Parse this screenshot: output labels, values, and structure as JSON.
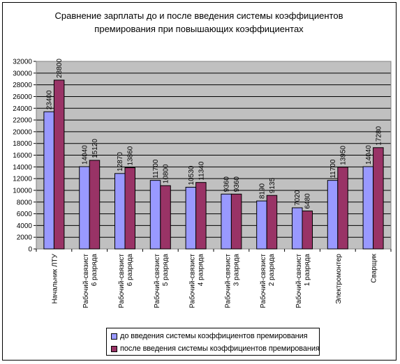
{
  "chart_data": {
    "type": "bar",
    "title": "Сравнение зарплаты до и после введения системы коэффициентов\nпремирования при повышающих коэффициентах",
    "categories": [
      "Начальник ЛТУ",
      "Рабочий-связист\n6 разряда",
      "Рабочий-связист\n6 разряда",
      "Рабочий-связист\n5 разряда",
      "Рабочий-связист\n4 разряда",
      "Рабочий-связист\n3 разряда",
      "Рабочий-связист\n2 разряда",
      "Рабочий-связист\n1 разряда",
      "Электромонтер",
      "Сварщик"
    ],
    "series": [
      {
        "name": "до введения системы коэффициентов премирования",
        "color": "#9999ff",
        "values": [
          23400,
          14040,
          12870,
          11700,
          10530,
          9360,
          8190,
          7020,
          11700,
          14040
        ]
      },
      {
        "name": "после введения системы коэффициентов премирования",
        "color": "#993366",
        "values": [
          28800,
          15120,
          13860,
          10800,
          11340,
          9360,
          9135,
          6480,
          13950,
          17280
        ]
      }
    ],
    "value_labels": [
      [
        "23400",
        "14040",
        "12870",
        "11700",
        "10530",
        "9360",
        "8190",
        "7020",
        "11700",
        "14040"
      ],
      [
        "28800",
        "15120",
        "13860",
        "10800",
        "11340",
        "9360",
        "9135",
        "6480",
        "13950",
        "17280"
      ]
    ],
    "ylim": [
      0,
      32000
    ],
    "yticks": [
      "0",
      "2000",
      "4000",
      "6000",
      "8000",
      "10000",
      "12000",
      "14000",
      "16000",
      "18000",
      "20000",
      "22000",
      "24000",
      "26000",
      "28000",
      "30000",
      "32000"
    ],
    "grid": true,
    "legend_position": "bottom",
    "plot_background": "#c0c0c0"
  }
}
